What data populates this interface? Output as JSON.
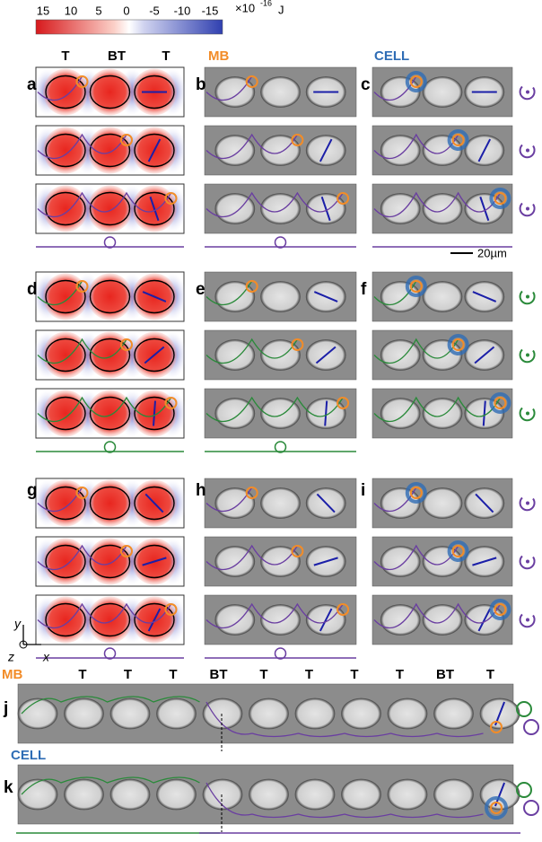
{
  "colorbar": {
    "ticks": [
      "15",
      "10",
      "5",
      "0",
      "-5",
      "-10",
      "-15"
    ],
    "multiplier": "×10",
    "exponent": "-16",
    "unit": "J"
  },
  "column_headers": {
    "field": [
      "T",
      "BT",
      "T"
    ],
    "mb": "MB",
    "cell": "CELL"
  },
  "panels": [
    "a",
    "b",
    "c",
    "d",
    "e",
    "f",
    "g",
    "h",
    "i",
    "j",
    "k"
  ],
  "scale_bar": "20µm",
  "axes": {
    "y": "y",
    "z": "z",
    "x": "x"
  },
  "strip_j": {
    "label": "MB",
    "traps": [
      "T",
      "T",
      "T",
      "BT",
      "T",
      "T",
      "T",
      "T",
      "BT",
      "T"
    ]
  },
  "strip_k": {
    "label": "CELL"
  }
}
